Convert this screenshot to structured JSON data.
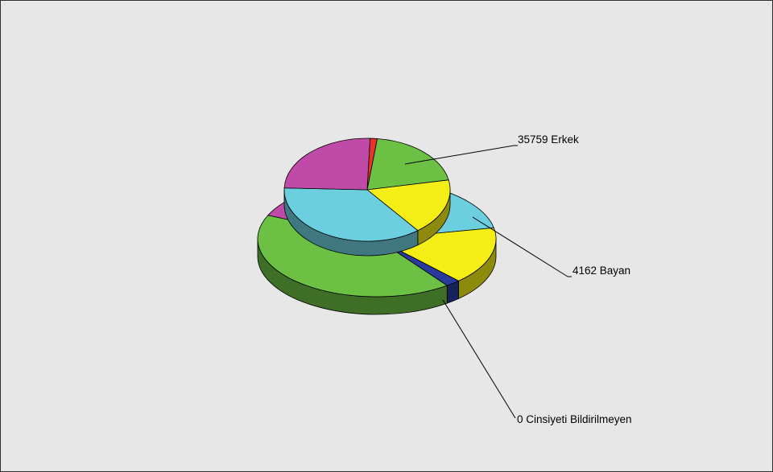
{
  "colors": {
    "background": "#e6e7e6",
    "purple": "#c04aa8",
    "red": "#e8322a",
    "green": "#6cc044",
    "yellow": "#f4ee16",
    "blue": "#2a3a9c",
    "cyan": "#6ccfdf",
    "outline": "#000000",
    "leader": "#000000"
  },
  "chart_data": {
    "type": "pie",
    "title": "",
    "style": "3d-stacked-pies",
    "pies": [
      {
        "slices": [
          {
            "color": "#c04aa8",
            "share": 0.073
          },
          {
            "color": "#6ccfdf",
            "share": 0.33
          },
          {
            "color": "#f4ee16",
            "share": 0.16
          },
          {
            "color": "#2a3a9c",
            "share": 0.02
          },
          {
            "color": "#6cc044",
            "share": 0.417
          }
        ]
      },
      {
        "slices": [
          {
            "color": "#e8322a",
            "share": 0.014
          },
          {
            "color": "#6cc044",
            "share": 0.2
          },
          {
            "color": "#f4ee16",
            "share": 0.176
          },
          {
            "color": "#6ccfdf",
            "share": 0.36
          },
          {
            "color": "#c04aa8",
            "share": 0.25
          }
        ]
      }
    ],
    "labels": [
      {
        "value": 35759,
        "category": "Erkek",
        "text": "35759 Erkek"
      },
      {
        "value": 4162,
        "category": "Bayan",
        "text": "4162 Bayan"
      },
      {
        "value": 0,
        "category": "Cinsiyeti Bildirilmeyen",
        "text": "0 Cinsiyeti Bildirilmeyen"
      }
    ]
  }
}
